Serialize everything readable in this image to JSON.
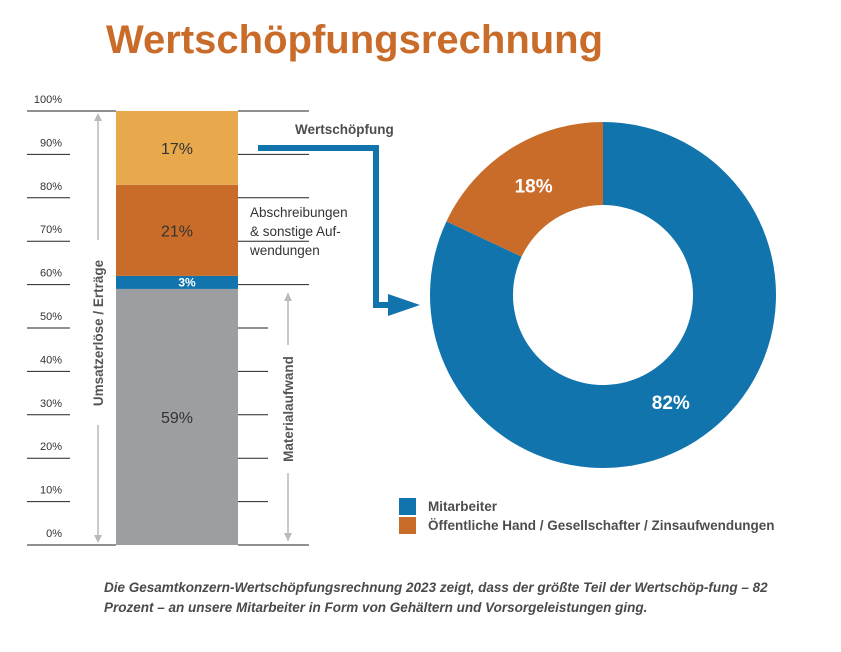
{
  "chart_data": [
    {
      "type": "bar",
      "subtype": "stacked-100",
      "ylabel": "Umsatzerlöse / Erträge",
      "yticks": [
        "0%",
        "10%",
        "20%",
        "30%",
        "40%",
        "50%",
        "60%",
        "70%",
        "80%",
        "90%",
        "100%"
      ],
      "ylim": [
        0,
        100
      ],
      "segments": [
        {
          "name": "Materialaufwand",
          "value": 59,
          "label": "59%",
          "color": "#9d9ea2"
        },
        {
          "name": "3%",
          "value": 3,
          "label": "3%",
          "color": "#1274ad"
        },
        {
          "name": "Abschreibungen & sonstige Aufwendungen",
          "value": 21,
          "label": "21%",
          "color": "#c96c2a"
        },
        {
          "name": "Wertschöpfung",
          "value": 17,
          "label": "17%",
          "color": "#e8a84c"
        }
      ],
      "annotations": {
        "materialaufwand": "Materialaufwand",
        "abschreibungen": [
          "Abschreibungen",
          "& sonstige Auf-",
          "wendungen"
        ],
        "wertschoepfung": "Wertschöpfung"
      }
    },
    {
      "type": "pie",
      "subtype": "donut",
      "slices": [
        {
          "name": "Mitarbeiter",
          "value": 82,
          "label": "82%",
          "color": "#1274ad"
        },
        {
          "name": "Öffentliche Hand / Gesellschafter / Zinsaufwendungen",
          "value": 18,
          "label": "18%",
          "color": "#c96c2a"
        }
      ],
      "legend_position": "bottom-left"
    }
  ],
  "title": "Wertschöpfungsrechnung",
  "caption": "Die Gesamtkonzern-Wertschöpfungsrechnung 2023 zeigt, dass der größte Teil der Wertschöp-fung – 82 Prozent – an unsere Mitarbeiter in Form von Gehältern und Vorsorgeleistungen ging.",
  "colors": {
    "title": "#c96c2a",
    "arrow": "#1274ad",
    "axis_arrow": "#b9b9bc"
  }
}
